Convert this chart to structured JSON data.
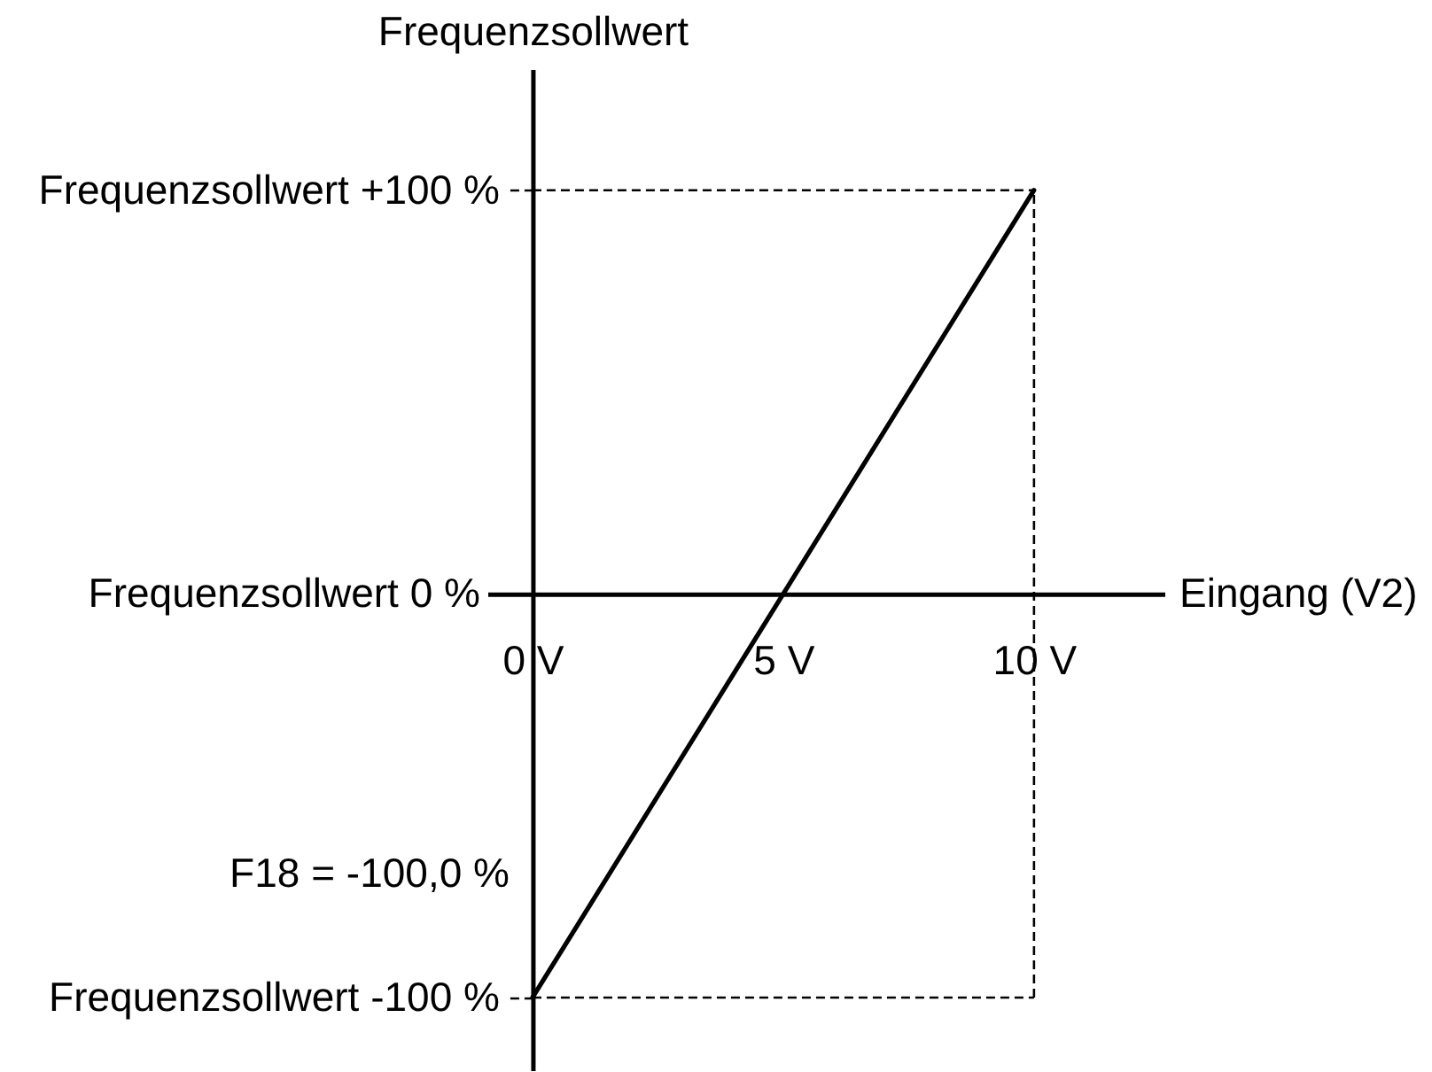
{
  "chart_data": {
    "type": "line",
    "xlabel": "Eingang (V2)",
    "ylabel": "Frequenzsollwert",
    "annotations": [
      "F18 = -100,0 %"
    ],
    "x": [
      0,
      10
    ],
    "series": [
      {
        "color": "#000000",
        "values": [
          -100,
          100
        ]
      }
    ],
    "xlim": [
      -0.9,
      12.6
    ],
    "ylim": [
      -118,
      130
    ],
    "xticks": [
      {
        "value": 0,
        "label": "0 V"
      },
      {
        "value": 5,
        "label": "5 V"
      },
      {
        "value": 10,
        "label": "10 V"
      }
    ],
    "yticks": [
      {
        "value": -100,
        "label": "Frequenzsollwert -100 %"
      },
      {
        "value": 0,
        "label": "Frequenzsollwert 0 %"
      },
      {
        "value": 100,
        "label": "Frequenzsollwert +100 %"
      }
    ],
    "ref_lines": [
      {
        "axis": "x",
        "value": 10,
        "line_style": "dashed",
        "color": "#000000"
      },
      {
        "axis": "y",
        "value": 100,
        "line_style": "dashed",
        "color": "#000000"
      },
      {
        "axis": "y",
        "value": -100,
        "line_style": "dashed",
        "color": "#000000"
      }
    ],
    "grid": false
  }
}
